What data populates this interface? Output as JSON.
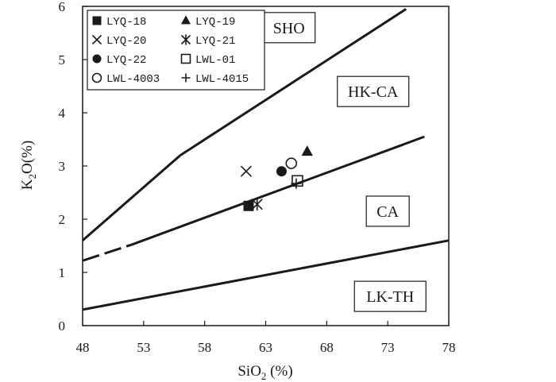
{
  "chart_data": {
    "type": "scatter",
    "title": "",
    "xlabel": "SiO",
    "xlabel_sub": "2",
    "xlabel_suffix": " (%)",
    "ylabel": "K",
    "ylabel_sub": "2",
    "ylabel_suffix": "O(%)",
    "xlim": [
      48,
      78
    ],
    "ylim": [
      0,
      6
    ],
    "xticks": [
      "48",
      "53",
      "58",
      "63",
      "68",
      "73",
      "78"
    ],
    "yticks": [
      "0",
      "1",
      "2",
      "3",
      "4",
      "5",
      "6"
    ],
    "grid": false,
    "legend_placement": "top-left",
    "field_labels": [
      {
        "text": "SHO",
        "x": 64.9,
        "y": 5.6
      },
      {
        "text": "HK-CA",
        "x": 71.8,
        "y": 4.4
      },
      {
        "text": "CA",
        "x": 73.0,
        "y": 2.15
      },
      {
        "text": "LK-TH",
        "x": 73.2,
        "y": 0.55
      }
    ],
    "boundaries": [
      {
        "points": [
          [
            48,
            1.6
          ],
          [
            56,
            3.2
          ],
          [
            74.5,
            5.95
          ]
        ],
        "dashed_until": null
      },
      {
        "points": [
          [
            48,
            1.22
          ],
          [
            52,
            1.52
          ],
          [
            76,
            3.55
          ]
        ],
        "dashed_until": 52
      },
      {
        "points": [
          [
            48,
            0.3
          ],
          [
            78,
            1.6
          ]
        ],
        "dashed_until": null
      }
    ],
    "series": [
      {
        "name": "LYQ-18",
        "marker": "square-filled",
        "points": [
          [
            61.6,
            2.25
          ]
        ]
      },
      {
        "name": "LYQ-19",
        "marker": "triangle-filled",
        "points": [
          [
            66.4,
            3.27
          ]
        ]
      },
      {
        "name": "LYQ-20",
        "marker": "x",
        "points": [
          [
            61.4,
            2.9
          ]
        ]
      },
      {
        "name": "LYQ-21",
        "marker": "asterisk",
        "points": [
          [
            62.3,
            2.28
          ]
        ]
      },
      {
        "name": "LYQ-22",
        "marker": "circle-filled",
        "points": [
          [
            64.3,
            2.9
          ]
        ]
      },
      {
        "name": "LWL-01",
        "marker": "square-open",
        "points": [
          [
            65.6,
            2.72
          ]
        ]
      },
      {
        "name": "LWL-4003",
        "marker": "circle-open",
        "points": [
          [
            65.1,
            3.05
          ]
        ]
      },
      {
        "name": "LWL-4015",
        "marker": "plus",
        "points": [
          [
            65.5,
            2.67
          ]
        ]
      }
    ]
  }
}
